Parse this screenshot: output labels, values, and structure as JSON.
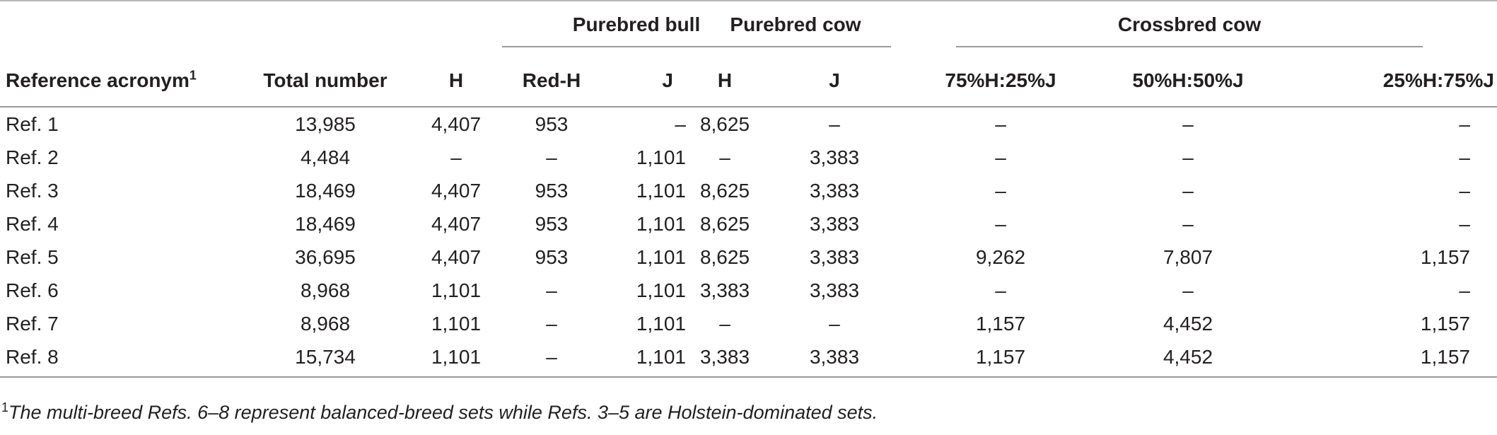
{
  "table": {
    "groups": {
      "purebred_bull": "Purebred bull",
      "purebred_cow": "Purebred cow",
      "crossbred_cow": "Crossbred cow"
    },
    "columns": {
      "ref": "Reference acronym",
      "ref_sup": "1",
      "total": "Total number",
      "bull_h": "H",
      "bull_redh": "Red-H",
      "bull_j": "J",
      "cow_h": "H",
      "cow_j": "J",
      "cross_75": "75%H:25%J",
      "cross_50": "50%H:50%J",
      "cross_25": "25%H:75%J"
    },
    "rows": [
      [
        "Ref. 1",
        "13,985",
        "4,407",
        "953",
        "–",
        "8,625",
        "–",
        "–",
        "–",
        "–"
      ],
      [
        "Ref. 2",
        "4,484",
        "–",
        "–",
        "1,101",
        "–",
        "3,383",
        "–",
        "–",
        "–"
      ],
      [
        "Ref. 3",
        "18,469",
        "4,407",
        "953",
        "1,101",
        "8,625",
        "3,383",
        "–",
        "–",
        "–"
      ],
      [
        "Ref. 4",
        "18,469",
        "4,407",
        "953",
        "1,101",
        "8,625",
        "3,383",
        "–",
        "–",
        "–"
      ],
      [
        "Ref. 5",
        "36,695",
        "4,407",
        "953",
        "1,101",
        "8,625",
        "3,383",
        "9,262",
        "7,807",
        "1,157"
      ],
      [
        "Ref. 6",
        "8,968",
        "1,101",
        "–",
        "1,101",
        "3,383",
        "3,383",
        "–",
        "–",
        "–"
      ],
      [
        "Ref. 7",
        "8,968",
        "1,101",
        "–",
        "1,101",
        "–",
        "–",
        "1,157",
        "4,452",
        "1,157"
      ],
      [
        "Ref. 8",
        "15,734",
        "1,101",
        "–",
        "1,101",
        "3,383",
        "3,383",
        "1,157",
        "4,452",
        "1,157"
      ]
    ]
  },
  "footnote": {
    "marker": "1",
    "text": "The multi-breed Refs. 6–8 represent balanced-breed sets while Refs. 3–5 are Holstein-dominated sets."
  }
}
